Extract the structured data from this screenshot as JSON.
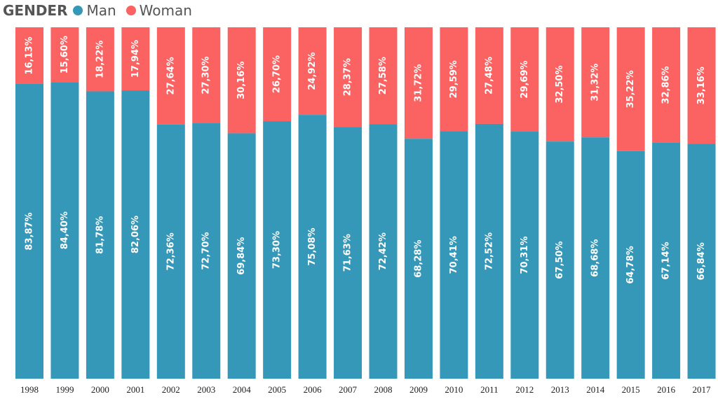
{
  "legend": {
    "title": "GENDER",
    "items": [
      {
        "label": "Man",
        "color": "#3598b8"
      },
      {
        "label": "Woman",
        "color": "#fb6262"
      }
    ]
  },
  "chart_data": {
    "type": "bar",
    "stacked": "percent",
    "title": "",
    "xlabel": "",
    "ylabel": "",
    "ylim": [
      0,
      100
    ],
    "categories": [
      "1998",
      "1999",
      "2000",
      "2001",
      "2002",
      "2003",
      "2004",
      "2005",
      "2006",
      "2007",
      "2008",
      "2009",
      "2010",
      "2011",
      "2012",
      "2013",
      "2014",
      "2015",
      "2016",
      "2017"
    ],
    "series": [
      {
        "name": "Man",
        "color": "#3598b8",
        "values": [
          83.87,
          84.4,
          81.78,
          82.06,
          72.36,
          72.7,
          69.84,
          73.3,
          75.08,
          71.63,
          72.42,
          68.28,
          70.41,
          72.52,
          70.31,
          67.5,
          68.68,
          64.78,
          67.14,
          66.84
        ],
        "labels": [
          "83,87%",
          "84,40%",
          "81,78%",
          "82,06%",
          "72,36%",
          "72,70%",
          "69,84%",
          "73,30%",
          "75,08%",
          "71,63%",
          "72,42%",
          "68,28%",
          "70,41%",
          "72,52%",
          "70,31%",
          "67,50%",
          "68,68%",
          "64,78%",
          "67,14%",
          "66,84%"
        ]
      },
      {
        "name": "Woman",
        "color": "#fb6262",
        "values": [
          16.13,
          15.6,
          18.22,
          17.94,
          27.64,
          27.3,
          30.16,
          26.7,
          24.92,
          28.37,
          27.58,
          31.72,
          29.59,
          27.48,
          29.69,
          32.5,
          31.32,
          35.22,
          32.86,
          33.16
        ],
        "labels": [
          "16,13%",
          "15,60%",
          "18,22%",
          "17,94%",
          "27,64%",
          "27,30%",
          "30,16%",
          "26,70%",
          "24,92%",
          "28,37%",
          "27,58%",
          "31,72%",
          "29,59%",
          "27,48%",
          "29,69%",
          "32,50%",
          "31,32%",
          "35,22%",
          "32,86%",
          "33,16%"
        ]
      }
    ]
  }
}
